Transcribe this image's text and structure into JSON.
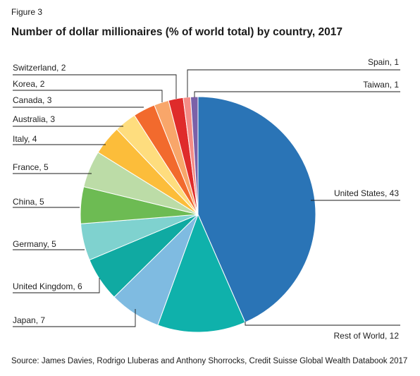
{
  "figure_label": "Figure 3",
  "source": "Source: James Davies, Rodrigo Lluberas and Anthony Shorrocks, Credit Suisse Global Wealth Databook 2017",
  "chart_data": {
    "type": "pie",
    "title": "Number of dollar millionaires (% of world total) by country, 2017",
    "unit": "% of world total",
    "slices": [
      {
        "label": "United States",
        "value": 43,
        "display": "United States, 43",
        "color": "#2a74b6"
      },
      {
        "label": "Rest of World",
        "value": 12,
        "display": "Rest of World, 12",
        "color": "#0fb1ab"
      },
      {
        "label": "Japan",
        "value": 7,
        "display": "Japan, 7",
        "color": "#7fbbe1"
      },
      {
        "label": "United Kingdom",
        "value": 6,
        "display": "United Kingdom, 6",
        "color": "#10aaa2"
      },
      {
        "label": "Germany",
        "value": 5,
        "display": "Germany, 5",
        "color": "#7fd2cf"
      },
      {
        "label": "China",
        "value": 5,
        "display": "China, 5",
        "color": "#6dbb53"
      },
      {
        "label": "France",
        "value": 5,
        "display": "France, 5",
        "color": "#bcdca7"
      },
      {
        "label": "Italy",
        "value": 4,
        "display": "Italy, 4",
        "color": "#fcbd3a"
      },
      {
        "label": "Australia",
        "value": 3,
        "display": "Australia, 3",
        "color": "#fedd7e"
      },
      {
        "label": "Canada",
        "value": 3,
        "display": "Canada, 3",
        "color": "#f26a2d"
      },
      {
        "label": "Korea",
        "value": 2,
        "display": "Korea, 2",
        "color": "#f8a66a"
      },
      {
        "label": "Switzerland",
        "value": 2,
        "display": "Switzerland, 2",
        "color": "#df2b2b"
      },
      {
        "label": "Spain",
        "value": 1,
        "display": "Spain, 1",
        "color": "#f48d87"
      },
      {
        "label": "Taiwan",
        "value": 1,
        "display": "Taiwan, 1",
        "color": "#7b61a8"
      }
    ]
  }
}
